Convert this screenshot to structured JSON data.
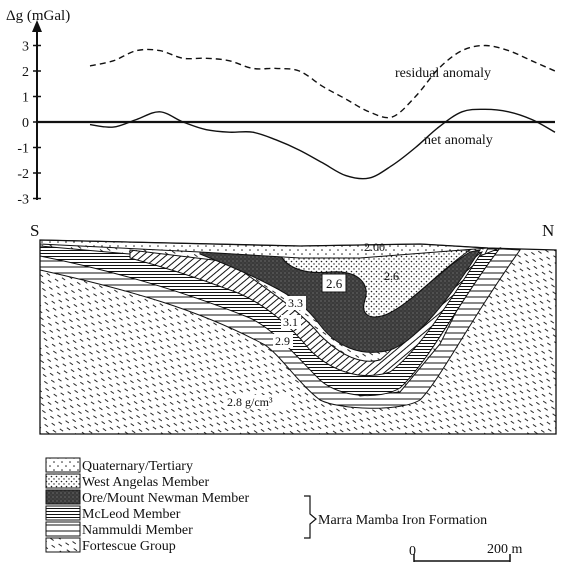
{
  "gravity_plot": {
    "y_axis_label": "Δg (mGal)",
    "y_ticks": [
      "3",
      "2",
      "1",
      "0",
      "-1",
      "-2",
      "-3"
    ],
    "residual_label": "residual anomaly",
    "net_label": "net anomaly"
  },
  "chart_data": {
    "type": "line",
    "ylabel": "Δg (mGal)",
    "ylim": [
      -3,
      3
    ],
    "x": [
      0.0,
      0.05,
      0.1,
      0.15,
      0.2,
      0.25,
      0.3,
      0.35,
      0.4,
      0.45,
      0.5,
      0.55,
      0.6,
      0.65,
      0.7,
      0.75,
      0.8,
      0.85,
      0.9,
      0.95,
      1.0
    ],
    "series": [
      {
        "name": "residual anomaly",
        "style": "dashed",
        "values": [
          2.2,
          2.4,
          2.8,
          2.8,
          2.5,
          2.5,
          2.4,
          2.1,
          2.1,
          2.0,
          1.4,
          0.9,
          0.4,
          0.2,
          1.0,
          2.1,
          2.8,
          3.0,
          2.8,
          2.4,
          2.0
        ]
      },
      {
        "name": "net anomaly",
        "style": "solid",
        "values": [
          -0.1,
          -0.2,
          0.1,
          0.4,
          0.0,
          -0.3,
          -0.4,
          -0.4,
          -0.7,
          -1.1,
          -1.6,
          -2.1,
          -2.2,
          -1.7,
          -1.0,
          -0.2,
          0.4,
          0.5,
          0.4,
          0.1,
          -0.4
        ]
      }
    ]
  },
  "section": {
    "left_label": "S",
    "right_label": "N",
    "density_labels": {
      "quaternary": "2.00",
      "west_angelas": "2.6",
      "ore": "2.6",
      "mcleod": "3.3",
      "nammuldi_a": "3.1",
      "nammuldi_b": "2.9",
      "fortescue": "2.8 g/cm³"
    }
  },
  "legend": {
    "items": [
      {
        "label": "Quaternary/Tertiary",
        "pattern": "dots-sparse"
      },
      {
        "label": "West Angelas Member",
        "pattern": "dots-dense"
      },
      {
        "label": "Ore/Mount Newman Member",
        "pattern": "dark-stipple"
      },
      {
        "label": "McLeod Member",
        "pattern": "hlines"
      },
      {
        "label": "Nammuldi Member",
        "pattern": "hlines-wide"
      },
      {
        "label": "Fortescue Group",
        "pattern": "diag-dash"
      }
    ],
    "group_label": "Marra Mamba Iron Formation"
  },
  "scale_bar": {
    "start": "0",
    "end": "200 m"
  }
}
